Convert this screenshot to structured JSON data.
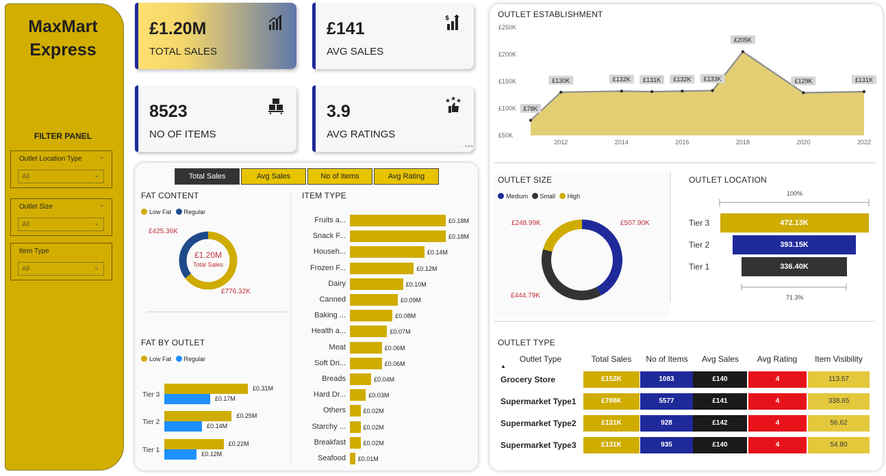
{
  "brand": {
    "line1": "MaxMart",
    "line2": "Express"
  },
  "filter_panel": {
    "title": "FILTER PANEL",
    "slicers": [
      {
        "label": "Outlet Location Type",
        "value": "All"
      },
      {
        "label": "Outlet Size",
        "value": "All"
      },
      {
        "label": "Item Type",
        "value": "All"
      }
    ]
  },
  "kpis": [
    {
      "value": "£1.20M",
      "label": "TOTAL SALES",
      "icon": "bar-chart-icon"
    },
    {
      "value": "£141",
      "label": "AVG SALES",
      "icon": "sales-growth-icon"
    },
    {
      "value": "8523",
      "label": "NO OF ITEMS",
      "icon": "boxes-icon"
    },
    {
      "value": "3.9",
      "label": "AVG RATINGS",
      "icon": "stars-thumb-icon"
    }
  ],
  "more_options": "···",
  "tabs": [
    "Total Sales",
    "Avg Sales",
    "No of Items",
    "Avg Rating"
  ],
  "colors": {
    "gold": "#CFAC00",
    "navy": "#1F2A9A",
    "regular": "#1E90FF",
    "dark": "#333333",
    "red": "#E8121B",
    "tableGold": "#E3C83C"
  },
  "fat_content": {
    "title": "FAT CONTENT",
    "legend": [
      "Low Fat",
      "Regular"
    ],
    "center_value": "£1.20M",
    "center_label": "Total Sales",
    "regular_label": "£425.36K",
    "low_fat_label": "£776.32K",
    "chart_data": {
      "type": "pie",
      "categories": [
        "Low Fat",
        "Regular"
      ],
      "values": [
        776.32,
        425.36
      ]
    }
  },
  "fat_by_outlet": {
    "title": "FAT BY OUTLET",
    "legend": [
      "Low Fat",
      "Regular"
    ],
    "chart_data": {
      "type": "bar",
      "categories": [
        "Tier 3",
        "Tier 2",
        "Tier 1"
      ],
      "series": [
        {
          "name": "Low Fat",
          "values": [
            0.31,
            0.25,
            0.22
          ],
          "labels": [
            "£0.31M",
            "£0.25M",
            "£0.22M"
          ]
        },
        {
          "name": "Regular",
          "values": [
            0.17,
            0.14,
            0.12
          ],
          "labels": [
            "£0.17M",
            "£0.14M",
            "£0.12M"
          ]
        }
      ]
    }
  },
  "item_type": {
    "title": "ITEM TYPE",
    "chart_data": {
      "type": "bar",
      "categories": [
        "Fruits a...",
        "Snack F...",
        "Househ...",
        "Frozen F...",
        "Dairy",
        "Canned",
        "Baking ...",
        "Health a...",
        "Meat",
        "Soft Dri...",
        "Breads",
        "Hard Dr...",
        "Others",
        "Starchy ...",
        "Breakfast",
        "Seafood"
      ],
      "values": [
        0.18,
        0.18,
        0.14,
        0.12,
        0.1,
        0.09,
        0.08,
        0.07,
        0.06,
        0.06,
        0.04,
        0.03,
        0.02,
        0.02,
        0.02,
        0.01
      ],
      "labels": [
        "£0.18M",
        "£0.18M",
        "£0.14M",
        "£0.12M",
        "£0.10M",
        "£0.09M",
        "£0.08M",
        "£0.07M",
        "£0.06M",
        "£0.06M",
        "£0.04M",
        "£0.03M",
        "£0.02M",
        "£0.02M",
        "£0.02M",
        "£0.01M"
      ]
    }
  },
  "outlet_establishment": {
    "title": "OUTLET ESTABLISHMENT",
    "chart_data": {
      "type": "area",
      "x": [
        2011,
        2012,
        2014,
        2015,
        2016,
        2017,
        2018,
        2020,
        2022
      ],
      "values": [
        78,
        130,
        132,
        131,
        132,
        133,
        205,
        129,
        131
      ],
      "labels": [
        "£78K",
        "£130K",
        "£132K",
        "£131K",
        "£132K",
        "£133K",
        "£205K",
        "£129K",
        "£131K"
      ],
      "y_ticks": [
        "£250K",
        "£200K",
        "£150K",
        "£100K",
        "£50K"
      ],
      "x_ticks": [
        "2012",
        "2014",
        "2016",
        "2018",
        "2020",
        "2022"
      ],
      "ylim": [
        50,
        250
      ]
    }
  },
  "outlet_size": {
    "title": "OUTLET SIZE",
    "legend": [
      "Medium",
      "Small",
      "High"
    ],
    "labels": [
      "£507.90K",
      "£444.79K",
      "£248.99K"
    ],
    "chart_data": {
      "type": "pie",
      "categories": [
        "Medium",
        "Small",
        "High"
      ],
      "values": [
        507.9,
        444.79,
        248.99
      ]
    }
  },
  "outlet_location": {
    "title": "OUTLET LOCATION",
    "top_pct": "100%",
    "bottom_pct": "71.3%",
    "chart_data": {
      "type": "bar",
      "categories": [
        "Tier 3",
        "Tier 2",
        "Tier 1"
      ],
      "values": [
        472.13,
        393.15,
        336.4
      ],
      "labels": [
        "472.13K",
        "393.15K",
        "336.40K"
      ]
    }
  },
  "outlet_type": {
    "title": "OUTLET TYPE",
    "sort_icon": "▲",
    "headers": [
      "Outlet Type",
      "Total Sales",
      "No of Items",
      "Avg Sales",
      "Avg Rating",
      "Item Visibility"
    ],
    "rows": [
      [
        "Grocery Store",
        "£152K",
        "1083",
        "£140",
        "4",
        "113.57"
      ],
      [
        "Supermarket Type1",
        "£788K",
        "5577",
        "£141",
        "4",
        "338.65"
      ],
      [
        "Supermarket Type2",
        "£131K",
        "928",
        "£142",
        "4",
        "56.62"
      ],
      [
        "Supermarket Type3",
        "£131K",
        "935",
        "£140",
        "4",
        "54.80"
      ]
    ]
  }
}
